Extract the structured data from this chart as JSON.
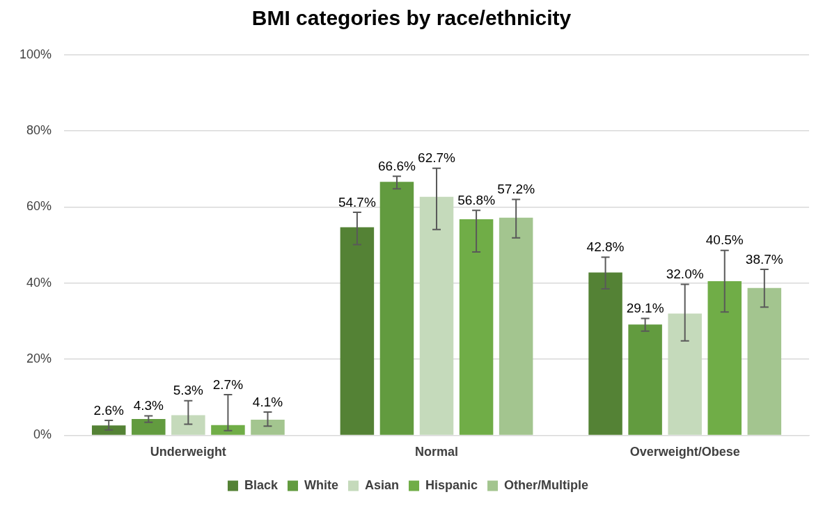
{
  "chart_data": {
    "type": "bar",
    "title": "BMI categories by race/ethnicity",
    "categories": [
      "Underweight",
      "Normal",
      "Overweight/Obese"
    ],
    "series": [
      {
        "name": "Black",
        "color": "#548235",
        "values": [
          2.6,
          54.7,
          42.8
        ],
        "value_labels": [
          "2.6%",
          "54.7%",
          "42.8%"
        ],
        "errors": [
          [
            1.4,
            3.9
          ],
          [
            50.1,
            58.6
          ],
          [
            38.5,
            46.8
          ]
        ]
      },
      {
        "name": "White",
        "color": "#629b3f",
        "values": [
          4.3,
          66.6,
          29.1
        ],
        "value_labels": [
          "4.3%",
          "66.6%",
          "29.1%"
        ],
        "errors": [
          [
            3.4,
            5.1
          ],
          [
            64.8,
            68.1
          ],
          [
            27.4,
            30.7
          ]
        ]
      },
      {
        "name": "Asian",
        "color": "#c5dabb",
        "values": [
          5.3,
          62.7,
          32.0
        ],
        "value_labels": [
          "5.3%",
          "62.7%",
          "32.0%"
        ],
        "errors": [
          [
            2.9,
            9.1
          ],
          [
            54.1,
            70.2
          ],
          [
            24.8,
            39.7
          ]
        ]
      },
      {
        "name": "Hispanic",
        "color": "#70ad47",
        "values": [
          2.7,
          56.8,
          40.5
        ],
        "value_labels": [
          "2.7%",
          "56.8%",
          "40.5%"
        ],
        "errors": [
          [
            1.2,
            10.7
          ],
          [
            48.2,
            59.1
          ],
          [
            32.4,
            48.6
          ]
        ]
      },
      {
        "name": "Other/Multiple",
        "color": "#a3c58f",
        "values": [
          4.1,
          57.2,
          38.7
        ],
        "value_labels": [
          "4.1%",
          "57.2%",
          "38.7%"
        ],
        "errors": [
          [
            2.4,
            6.1
          ],
          [
            51.9,
            62.0
          ],
          [
            33.7,
            43.6
          ]
        ]
      }
    ],
    "ylim": [
      0,
      100
    ],
    "yticks": [
      {
        "value": 0,
        "label": "0%"
      },
      {
        "value": 20,
        "label": "20%"
      },
      {
        "value": 40,
        "label": "40%"
      },
      {
        "value": 60,
        "label": "60%"
      },
      {
        "value": 80,
        "label": "80%"
      },
      {
        "value": 100,
        "label": "100%"
      }
    ],
    "grid": "y",
    "legend": "bottom"
  }
}
